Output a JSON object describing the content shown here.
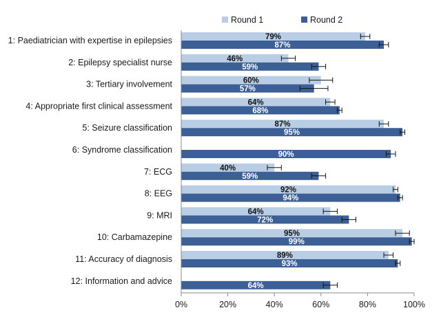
{
  "chart_data": {
    "type": "bar",
    "orientation": "horizontal",
    "categories": [
      "1: Paediatrician with expertise in epilepsies",
      "2: Epilepsy specialist nurse",
      "3: Tertiary involvement",
      "4: Appropriate first clinical assessment",
      "5: Seizure classification",
      "6: Syndrome classification",
      "7: ECG",
      "8: EEG",
      "9: MRI",
      "10: Carbamazepine",
      "11: Accuracy of diagnosis",
      "12: Information and advice"
    ],
    "series": [
      {
        "name": "Round 1",
        "color": "#b9cde5",
        "values": [
          79,
          46,
          60,
          64,
          87,
          null,
          40,
          92,
          64,
          95,
          89,
          null
        ],
        "labels": [
          "79%",
          "46%",
          "60%",
          "64%",
          "87%",
          "",
          "40%",
          "92%",
          "64%",
          "95%",
          "89%",
          ""
        ],
        "err": [
          2,
          3,
          5,
          2,
          2,
          null,
          3,
          1,
          3,
          3,
          2,
          null
        ]
      },
      {
        "name": "Round 2",
        "color": "#3c5f95",
        "values": [
          87,
          59,
          57,
          68,
          95,
          90,
          59,
          94,
          72,
          99,
          93,
          64
        ],
        "labels": [
          "87%",
          "59%",
          "57%",
          "68%",
          "95%",
          "90%",
          "59%",
          "94%",
          "72%",
          "99%",
          "93%",
          "64%"
        ],
        "err": [
          2,
          3,
          6,
          1,
          1,
          2,
          3,
          1,
          3,
          1,
          1,
          3
        ]
      }
    ],
    "xlim": [
      0,
      100
    ],
    "xticks": [
      "0%",
      "20%",
      "40%",
      "60%",
      "80%",
      "100%"
    ],
    "gridlines": false,
    "legend_position": "top"
  }
}
